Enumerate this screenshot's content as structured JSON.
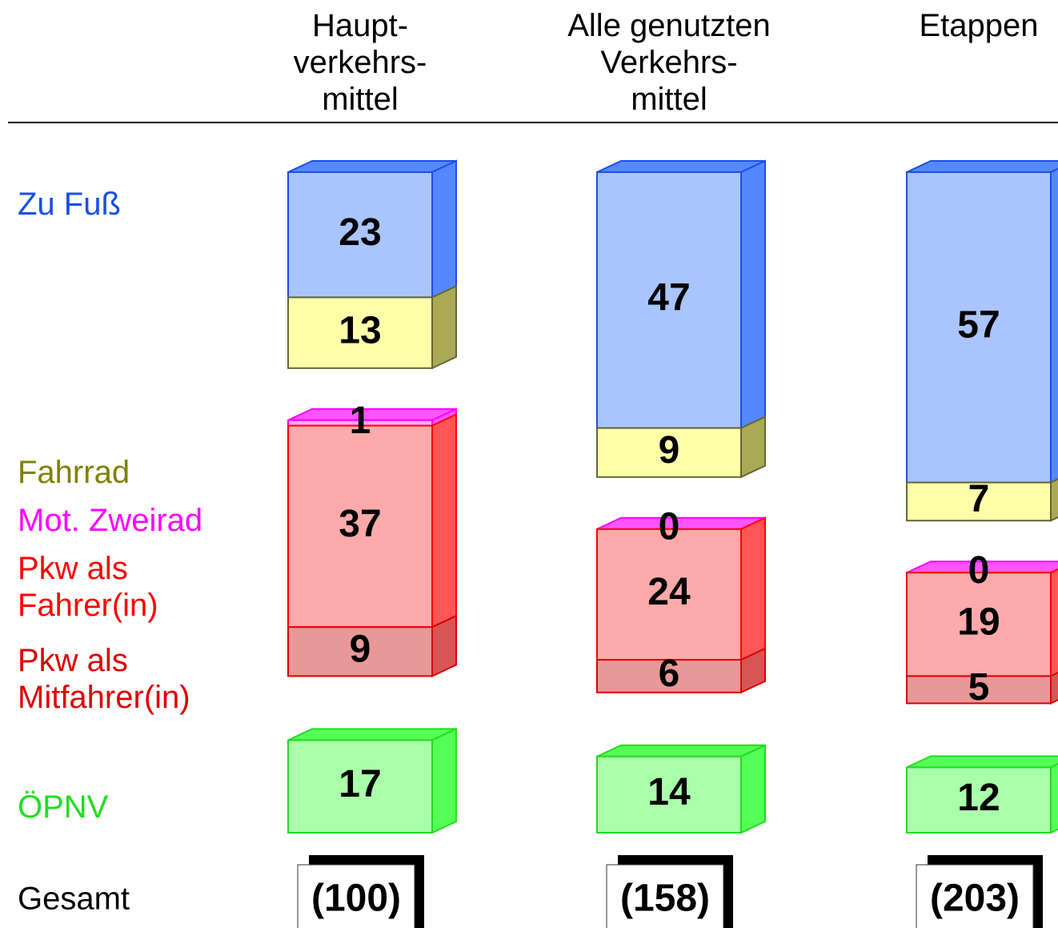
{
  "chart_data": {
    "type": "bar",
    "categories": [
      "Haupt-\nverkehrs-\nmittel",
      "Alle genutzten\nVerkehrs-\nmittel",
      "Etappen"
    ],
    "series": [
      {
        "name": "Zu Fuß",
        "color": "#aac4ff",
        "side_color": "#5588ff",
        "edge_color": "#1a4fe8",
        "label_color": "#1a4fe8",
        "values": [
          23,
          47,
          57
        ]
      },
      {
        "name": "Fahrrad",
        "color": "#ffffaa",
        "side_color": "#aaaa55",
        "edge_color": "#666633",
        "label_color": "#808000",
        "values": [
          13,
          9,
          7
        ]
      },
      {
        "name": "Mot. Zweirad",
        "color": "#ffaaff",
        "side_color": "#ff55ff",
        "edge_color": "#ff00ff",
        "label_color": "#ff00ff",
        "values": [
          1,
          0,
          0
        ]
      },
      {
        "name": "Pkw als\nFahrer(in)",
        "color": "#ffaaaa",
        "side_color": "#ff5555",
        "edge_color": "#ff0000",
        "label_color": "#ff0000",
        "values": [
          37,
          24,
          19
        ]
      },
      {
        "name": "Pkw als\nMitfahrer(in)",
        "color": "#e89898",
        "side_color": "#d85555",
        "edge_color": "#dd0000",
        "label_color": "#dd0000",
        "values": [
          9,
          6,
          5
        ]
      },
      {
        "name": "ÖPNV",
        "color": "#aaffaa",
        "side_color": "#55ff55",
        "edge_color": "#22dd22",
        "label_color": "#22dd22",
        "values": [
          17,
          14,
          12
        ]
      }
    ],
    "totals": {
      "name": "Gesamt",
      "values": [
        100,
        158,
        203
      ],
      "value_labels": [
        "(100)",
        "(158)",
        "(203)"
      ]
    }
  }
}
